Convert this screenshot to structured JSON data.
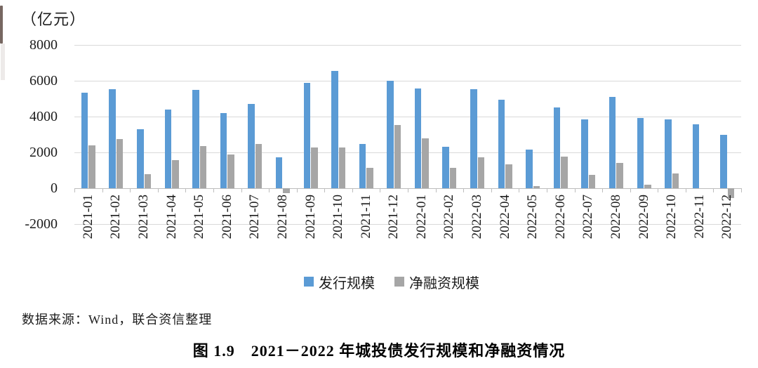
{
  "unit_label": "（亿元）",
  "source_note": "数据来源：Wind，联合资信整理",
  "caption": "图 1.9　2021－2022 年城投债发行规模和净融资情况",
  "colors": {
    "issuance_blue": "#5B9BD5",
    "net_gray": "#A6A6A6",
    "gridline": "#D9D9D9",
    "axis_line": "#BDBDBD"
  },
  "legend": {
    "position": "bottom",
    "items": [
      {
        "label": "发行规模",
        "color": "#5B9BD5"
      },
      {
        "label": "净融资规模",
        "color": "#A6A6A6"
      }
    ]
  },
  "chart_data": {
    "type": "bar",
    "title": "图 1.9　2021－2022 年城投债发行规模和净融资情况",
    "ylabel": "（亿元）",
    "xlabel": "",
    "ylim": [
      -2000,
      8000
    ],
    "yticks": [
      8000,
      6000,
      4000,
      2000,
      0,
      -2000
    ],
    "grid": true,
    "legend_position": "bottom",
    "categories": [
      "2021-01",
      "2021-02",
      "2021-03",
      "2021-04",
      "2021-05",
      "2021-06",
      "2021-07",
      "2021-08",
      "2021-09",
      "2021-10",
      "2021-11",
      "2021-12",
      "2022-01",
      "2022-02",
      "2022-03",
      "2022-04",
      "2022-05",
      "2022-06",
      "2022-07",
      "2022-08",
      "2022-09",
      "2022-10",
      "2022-11",
      "2022-12"
    ],
    "series": [
      {
        "name": "发行规模",
        "color": "#5B9BD5",
        "values": [
          5320,
          5520,
          3300,
          4410,
          5500,
          4180,
          4700,
          1720,
          5900,
          6560,
          2470,
          6020,
          5570,
          2300,
          5550,
          4960,
          2170,
          4520,
          3840,
          5090,
          3940,
          3840,
          3590,
          2970
        ]
      },
      {
        "name": "净融资规模",
        "color": "#A6A6A6",
        "values": [
          2400,
          2730,
          790,
          1590,
          2370,
          1890,
          2470,
          -280,
          2290,
          2280,
          1140,
          3530,
          2790,
          1120,
          1740,
          1340,
          120,
          1750,
          760,
          1420,
          210,
          810,
          0,
          -540
        ]
      }
    ]
  }
}
